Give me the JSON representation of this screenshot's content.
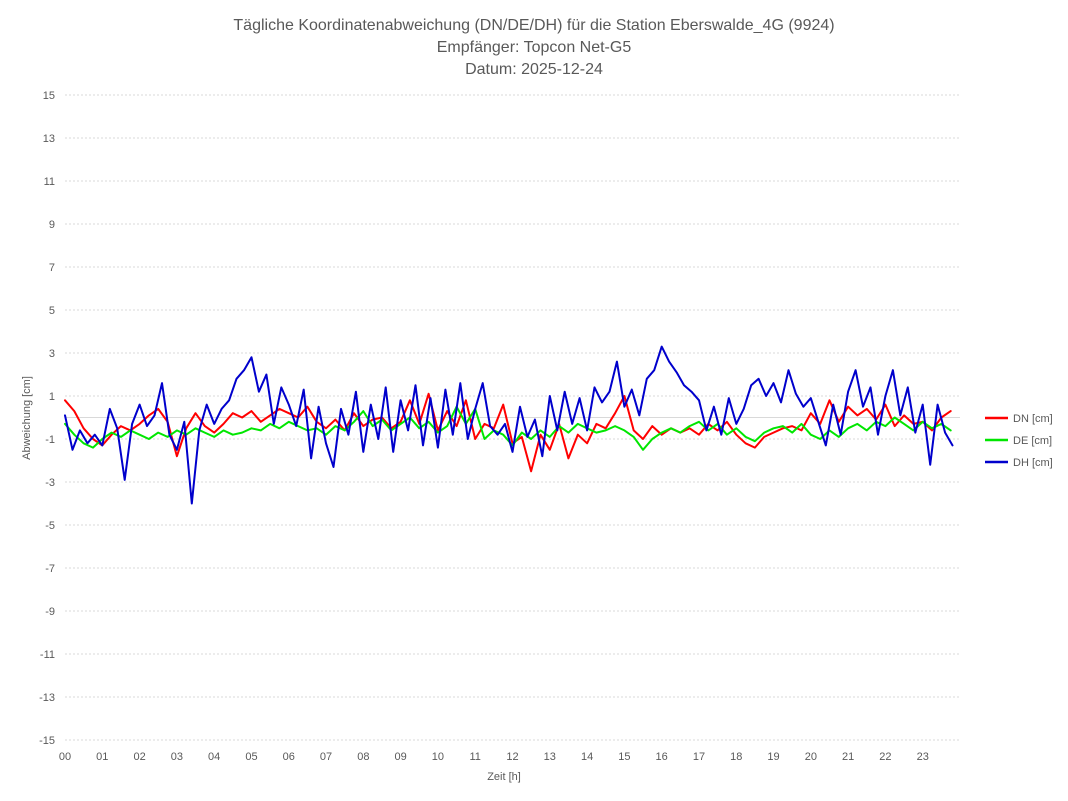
{
  "chart_data": {
    "type": "line",
    "title_lines": [
      "Tägliche Koordinatenabweichung (DN/DE/DH) für die Station Eberswalde_4G (9924)",
      "Empfänger: Topcon Net-G5",
      "Datum: 2025-12-24"
    ],
    "xlabel": "Zeit [h]",
    "ylabel": "Abweichung [cm]",
    "xlim": [
      0,
      24
    ],
    "ylim": [
      -15,
      15
    ],
    "x_ticks": [
      "00",
      "01",
      "02",
      "03",
      "04",
      "05",
      "06",
      "07",
      "08",
      "09",
      "10",
      "11",
      "12",
      "13",
      "14",
      "15",
      "16",
      "17",
      "18",
      "19",
      "20",
      "21",
      "22",
      "23"
    ],
    "y_ticks": [
      15,
      13,
      11,
      9,
      7,
      5,
      3,
      1,
      -1,
      -3,
      -5,
      -7,
      -9,
      -11,
      -13,
      -15
    ],
    "legend_position": "right",
    "series": [
      {
        "name": "DN [cm]",
        "color": "#ff0000",
        "x": [
          0.0,
          0.25,
          0.5,
          0.75,
          1.0,
          1.25,
          1.5,
          1.75,
          2.0,
          2.25,
          2.5,
          2.75,
          3.0,
          3.25,
          3.5,
          3.75,
          4.0,
          4.25,
          4.5,
          4.75,
          5.0,
          5.25,
          5.5,
          5.75,
          6.0,
          6.25,
          6.5,
          6.75,
          7.0,
          7.25,
          7.5,
          7.75,
          8.0,
          8.25,
          8.5,
          8.75,
          9.0,
          9.25,
          9.5,
          9.75,
          10.0,
          10.25,
          10.5,
          10.75,
          11.0,
          11.25,
          11.5,
          11.75,
          12.0,
          12.25,
          12.5,
          12.75,
          13.0,
          13.25,
          13.5,
          13.75,
          14.0,
          14.25,
          14.5,
          14.75,
          15.0,
          15.25,
          15.5,
          15.75,
          16.0,
          16.25,
          16.5,
          16.75,
          17.0,
          17.25,
          17.5,
          17.75,
          18.0,
          18.25,
          18.5,
          18.75,
          19.0,
          19.25,
          19.5,
          19.75,
          20.0,
          20.25,
          20.5,
          20.75,
          21.0,
          21.25,
          21.5,
          21.75,
          22.0,
          22.25,
          22.5,
          22.75,
          23.0,
          23.25,
          23.5,
          23.75
        ],
        "values": [
          0.8,
          0.3,
          -0.5,
          -1.0,
          -1.3,
          -0.8,
          -0.4,
          -0.6,
          -0.3,
          0.1,
          0.4,
          -0.2,
          -1.8,
          -0.5,
          0.2,
          -0.4,
          -0.7,
          -0.3,
          0.2,
          0.0,
          0.3,
          -0.2,
          0.1,
          0.4,
          0.2,
          0.0,
          0.5,
          -0.2,
          -0.5,
          -0.1,
          -0.6,
          0.2,
          -0.4,
          -0.1,
          0.0,
          -0.5,
          -0.2,
          0.8,
          -0.3,
          1.1,
          -0.6,
          0.3,
          -0.4,
          0.8,
          -1.0,
          -0.3,
          -0.5,
          0.6,
          -1.2,
          -0.9,
          -2.5,
          -0.8,
          -1.5,
          -0.3,
          -1.9,
          -0.8,
          -1.2,
          -0.3,
          -0.5,
          0.2,
          1.0,
          -0.6,
          -1.0,
          -0.4,
          -0.8,
          -0.5,
          -0.7,
          -0.5,
          -0.8,
          -0.3,
          -0.6,
          -0.2,
          -0.8,
          -1.2,
          -1.4,
          -0.9,
          -0.7,
          -0.5,
          -0.4,
          -0.6,
          0.2,
          -0.3,
          0.8,
          -0.2,
          0.5,
          0.1,
          0.4,
          -0.1,
          0.6,
          -0.4,
          0.1,
          -0.3,
          -0.2,
          -0.6,
          0.0,
          0.3
        ]
      },
      {
        "name": "DE [cm]",
        "color": "#00e600",
        "x": [
          0.0,
          0.25,
          0.5,
          0.75,
          1.0,
          1.25,
          1.5,
          1.75,
          2.0,
          2.25,
          2.5,
          2.75,
          3.0,
          3.25,
          3.5,
          3.75,
          4.0,
          4.25,
          4.5,
          4.75,
          5.0,
          5.25,
          5.5,
          5.75,
          6.0,
          6.25,
          6.5,
          6.75,
          7.0,
          7.25,
          7.5,
          7.75,
          8.0,
          8.25,
          8.5,
          8.75,
          9.0,
          9.25,
          9.5,
          9.75,
          10.0,
          10.25,
          10.5,
          10.75,
          11.0,
          11.25,
          11.5,
          11.75,
          12.0,
          12.25,
          12.5,
          12.75,
          13.0,
          13.25,
          13.5,
          13.75,
          14.0,
          14.25,
          14.5,
          14.75,
          15.0,
          15.25,
          15.5,
          15.75,
          16.0,
          16.25,
          16.5,
          16.75,
          17.0,
          17.25,
          17.5,
          17.75,
          18.0,
          18.25,
          18.5,
          18.75,
          19.0,
          19.25,
          19.5,
          19.75,
          20.0,
          20.25,
          20.5,
          20.75,
          21.0,
          21.25,
          21.5,
          21.75,
          22.0,
          22.25,
          22.5,
          22.75,
          23.0,
          23.25,
          23.5,
          23.75
        ],
        "values": [
          -0.3,
          -0.8,
          -1.2,
          -1.4,
          -1.0,
          -0.7,
          -0.9,
          -0.6,
          -0.8,
          -1.0,
          -0.7,
          -0.9,
          -0.6,
          -0.8,
          -0.5,
          -0.7,
          -0.9,
          -0.6,
          -0.8,
          -0.7,
          -0.5,
          -0.6,
          -0.3,
          -0.5,
          -0.2,
          -0.4,
          -0.6,
          -0.5,
          -0.8,
          -0.4,
          -0.6,
          -0.2,
          0.3,
          -0.4,
          -0.1,
          -0.6,
          -0.3,
          0.0,
          -0.5,
          -0.2,
          -0.7,
          -0.4,
          0.5,
          -0.3,
          0.4,
          -1.0,
          -0.6,
          -0.8,
          -1.3,
          -0.7,
          -1.0,
          -0.6,
          -0.9,
          -0.4,
          -0.7,
          -0.3,
          -0.5,
          -0.7,
          -0.6,
          -0.4,
          -0.6,
          -0.9,
          -1.5,
          -1.0,
          -0.7,
          -0.5,
          -0.7,
          -0.4,
          -0.2,
          -0.6,
          -0.3,
          -0.8,
          -0.5,
          -0.9,
          -1.1,
          -0.7,
          -0.5,
          -0.4,
          -0.7,
          -0.3,
          -0.8,
          -1.0,
          -0.6,
          -0.9,
          -0.5,
          -0.3,
          -0.6,
          -0.2,
          -0.4,
          0.0,
          -0.3,
          -0.6,
          -0.2,
          -0.5,
          -0.3,
          -0.6
        ]
      },
      {
        "name": "DH [cm]",
        "color": "#0000cc",
        "x": [
          0.0,
          0.2,
          0.4,
          0.6,
          0.8,
          1.0,
          1.2,
          1.4,
          1.6,
          1.8,
          2.0,
          2.2,
          2.4,
          2.6,
          2.8,
          3.0,
          3.2,
          3.4,
          3.6,
          3.8,
          4.0,
          4.2,
          4.4,
          4.6,
          4.8,
          5.0,
          5.2,
          5.4,
          5.6,
          5.8,
          6.0,
          6.2,
          6.4,
          6.6,
          6.8,
          7.0,
          7.2,
          7.4,
          7.6,
          7.8,
          8.0,
          8.2,
          8.4,
          8.6,
          8.8,
          9.0,
          9.2,
          9.4,
          9.6,
          9.8,
          10.0,
          10.2,
          10.4,
          10.6,
          10.8,
          11.0,
          11.2,
          11.4,
          11.6,
          11.8,
          12.0,
          12.2,
          12.4,
          12.6,
          12.8,
          13.0,
          13.2,
          13.4,
          13.6,
          13.8,
          14.0,
          14.2,
          14.4,
          14.6,
          14.8,
          15.0,
          15.2,
          15.4,
          15.6,
          15.8,
          16.0,
          16.2,
          16.4,
          16.6,
          16.8,
          17.0,
          17.2,
          17.4,
          17.6,
          17.8,
          18.0,
          18.2,
          18.4,
          18.6,
          18.8,
          19.0,
          19.2,
          19.4,
          19.6,
          19.8,
          20.0,
          20.2,
          20.4,
          20.6,
          20.8,
          21.0,
          21.2,
          21.4,
          21.6,
          21.8,
          22.0,
          22.2,
          22.4,
          22.6,
          22.8,
          23.0,
          23.2,
          23.4,
          23.6,
          23.8
        ],
        "values": [
          0.1,
          -1.5,
          -0.6,
          -1.2,
          -0.8,
          -1.3,
          0.4,
          -0.5,
          -2.9,
          -0.3,
          0.6,
          -0.4,
          0.1,
          1.6,
          -0.8,
          -1.5,
          -0.2,
          -4.0,
          -0.6,
          0.6,
          -0.3,
          0.4,
          0.8,
          1.8,
          2.2,
          2.8,
          1.2,
          2.0,
          -0.3,
          1.4,
          0.6,
          -0.4,
          1.3,
          -1.9,
          0.5,
          -1.2,
          -2.3,
          0.4,
          -0.8,
          1.2,
          -1.6,
          0.6,
          -1.0,
          1.4,
          -1.6,
          0.8,
          -0.6,
          1.5,
          -1.3,
          0.9,
          -1.4,
          1.3,
          -0.8,
          1.6,
          -1.0,
          0.4,
          1.6,
          -0.4,
          -0.8,
          -0.3,
          -1.6,
          0.5,
          -0.9,
          -0.1,
          -1.8,
          1.0,
          -0.6,
          1.2,
          -0.3,
          0.9,
          -0.6,
          1.4,
          0.7,
          1.2,
          2.6,
          0.5,
          1.3,
          0.1,
          1.8,
          2.2,
          3.3,
          2.6,
          2.1,
          1.5,
          1.2,
          0.8,
          -0.6,
          0.5,
          -0.8,
          0.9,
          -0.3,
          0.4,
          1.5,
          1.8,
          1.0,
          1.6,
          0.7,
          2.2,
          1.1,
          0.5,
          0.9,
          -0.2,
          -1.3,
          0.6,
          -0.8,
          1.2,
          2.2,
          0.5,
          1.4,
          -0.8,
          1.0,
          2.2,
          0.1,
          1.4,
          -0.7,
          0.6,
          -2.2,
          0.6,
          -0.7,
          -1.3
        ]
      }
    ]
  }
}
